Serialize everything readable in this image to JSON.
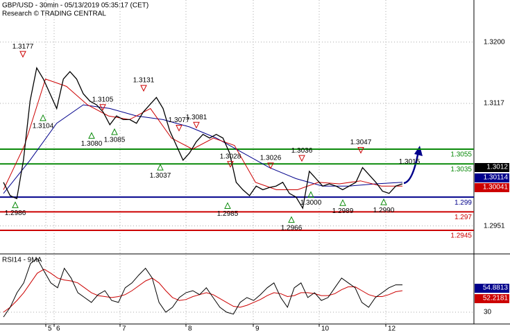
{
  "chart_data": {
    "type": "price",
    "title": "GBP/USD - 30min - 05/13/2019 05:35:17 (CET)",
    "subtitle": "Research © TRADING CENTRAL",
    "ylim": [
      1.2914,
      1.3257
    ],
    "yticks": [
      {
        "value": 1.32,
        "label": "1.3200"
      },
      1.3117,
      1.2951
    ],
    "x_labels": [
      "5",
      "6",
      "7",
      "8",
      "9",
      "10",
      "12"
    ],
    "series": [
      {
        "color": "#000000",
        "values": [
          1.301,
          1.2992,
          1.2988,
          1.304,
          1.312,
          1.3165,
          1.315,
          1.313,
          1.311,
          1.315,
          1.316,
          1.315,
          1.313,
          1.312,
          1.3115,
          1.3105,
          1.3088,
          1.31,
          1.3095,
          1.3095,
          1.309,
          1.3105,
          1.3115,
          1.3125,
          1.311,
          1.308,
          1.306,
          1.304,
          1.305,
          1.3065,
          1.3075,
          1.307,
          1.3075,
          1.307,
          1.305,
          1.301,
          1.3,
          1.2992,
          1.3005,
          1.3,
          1.3003,
          1.3005,
          1.301,
          1.2995,
          1.299,
          1.2975,
          1.3025,
          1.3015,
          1.3005,
          1.3008,
          1.3005,
          1.3,
          1.3005,
          1.301,
          1.303,
          1.302,
          1.301,
          1.2998,
          1.2995,
          1.3005,
          1.3008
        ]
      },
      {
        "color": "#cc0000",
        "values": [
          1.3,
          1.306,
          1.315,
          1.314,
          1.3115,
          1.31,
          1.3095,
          1.311,
          1.307,
          1.3055,
          1.307,
          1.306,
          1.301,
          1.3,
          1.3,
          1.301,
          1.3008,
          1.3012,
          1.3005,
          1.3005
        ]
      },
      {
        "color": "#00008b",
        "values": [
          1.2995,
          1.304,
          1.309,
          1.3115,
          1.311,
          1.31,
          1.3095,
          1.3085,
          1.307,
          1.305,
          1.303,
          1.3015,
          1.3005,
          1.3005,
          1.3008,
          1.301
        ]
      }
    ],
    "levels": [
      {
        "value": 1.3055,
        "color": "#0a8a0a"
      },
      {
        "value": 1.3035,
        "color": "#0a8a0a"
      },
      {
        "value": 1.299,
        "color": "#00008b"
      },
      {
        "value": 1.297,
        "color": "#cc0000"
      },
      {
        "value": 1.2945,
        "color": "#cc0000"
      }
    ],
    "highs": [
      1.3177,
      1.3105,
      1.3131,
      1.3077,
      1.3081,
      1.3028,
      1.3026,
      1.3036,
      1.3047
    ],
    "lows": [
      {
        "value": 1.2986,
        "label": "1.2986"
      },
      1.3104,
      {
        "value": 1.308,
        "label": "1.3080"
      },
      1.3085,
      1.3037,
      1.2985,
      1.2966,
      {
        "value": 1.3,
        "label": "1.3000"
      },
      1.2989,
      {
        "value": 1.299,
        "label": "1.2990"
      }
    ],
    "target": 1.3015,
    "last_prices": [
      1.3012,
      1.30114,
      1.30041
    ],
    "rsi": {
      "title": "RSI14 - 9MA",
      "ylim": [
        19.3,
        86.9
      ],
      "yticks": [
        30
      ],
      "series": [
        {
          "color": "#000000",
          "values": [
            25,
            35,
            50,
            60,
            80,
            85,
            72,
            60,
            55,
            75,
            65,
            50,
            45,
            40,
            48,
            52,
            42,
            40,
            55,
            60,
            68,
            75,
            65,
            40,
            30,
            35,
            45,
            50,
            52,
            48,
            55,
            45,
            35,
            30,
            28,
            40,
            45,
            42,
            48,
            55,
            60,
            45,
            35,
            55,
            60,
            45,
            50,
            42,
            45,
            55,
            65,
            60,
            55,
            40,
            35,
            45,
            50,
            55,
            58,
            58
          ]
        },
        {
          "color": "#cc0000",
          "values": [
            30,
            35,
            42,
            50,
            60,
            70,
            74,
            70,
            65,
            63,
            62,
            60,
            55,
            50,
            47,
            46,
            45,
            46,
            48,
            52,
            57,
            62,
            65,
            60,
            52,
            45,
            42,
            43,
            46,
            48,
            50,
            48,
            44,
            40,
            36,
            35,
            37,
            40,
            43,
            47,
            50,
            49,
            46,
            47,
            50,
            50,
            49,
            47,
            47,
            49,
            53,
            56,
            56,
            52,
            48,
            46,
            46,
            48,
            51,
            52
          ]
        }
      ],
      "last_values": [
        54.8813,
        52.2181
      ]
    }
  }
}
